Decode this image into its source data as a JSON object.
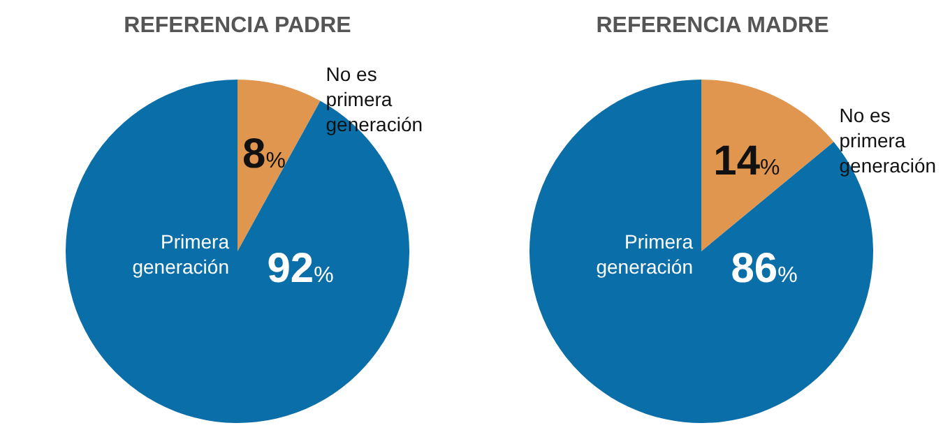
{
  "chart_data": [
    {
      "type": "pie",
      "title": "REFERENCIA PADRE",
      "categories": [
        "No es primera generación",
        "Primera generación"
      ],
      "values": [
        8,
        92
      ],
      "value_labels": [
        "8%",
        "92%"
      ],
      "colors": [
        "#e0964f",
        "#0a6ea8"
      ],
      "legend": false
    },
    {
      "type": "pie",
      "title": "REFERENCIA MADRE",
      "categories": [
        "No es primera generación",
        "Primera generación"
      ],
      "values": [
        14,
        86
      ],
      "value_labels": [
        "14%",
        "86%"
      ],
      "colors": [
        "#e0964f",
        "#0a6ea8"
      ],
      "legend": false
    }
  ]
}
